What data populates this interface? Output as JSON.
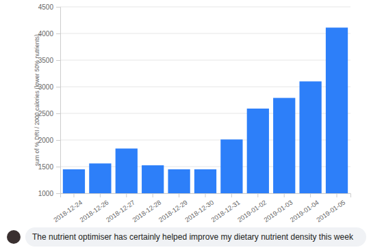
{
  "chart_data": {
    "type": "bar",
    "y_label": "sum of % DRI / 2000 calories (lower 50% nutrients)",
    "categories": [
      "2018-12-24",
      "2018-12-26",
      "2018-12-27",
      "2018-12-28",
      "2018-12-29",
      "2018-12-30",
      "2018-12-31",
      "2019-01-02",
      "2019-01-03",
      "2019-01-04",
      "2019-01-05"
    ],
    "values": [
      1450,
      1560,
      1840,
      1525,
      1450,
      1450,
      2010,
      2590,
      2790,
      3100,
      4110
    ],
    "color": "#2d7ff9",
    "ylim": [
      1000,
      4500
    ],
    "yticks": [
      1000,
      1500,
      2000,
      2500,
      3000,
      3500,
      4000,
      4500
    ],
    "grid": true,
    "annotations": [
      "The nutrient optimiser has certainly helped improve my dietary nutrient density this week"
    ]
  }
}
